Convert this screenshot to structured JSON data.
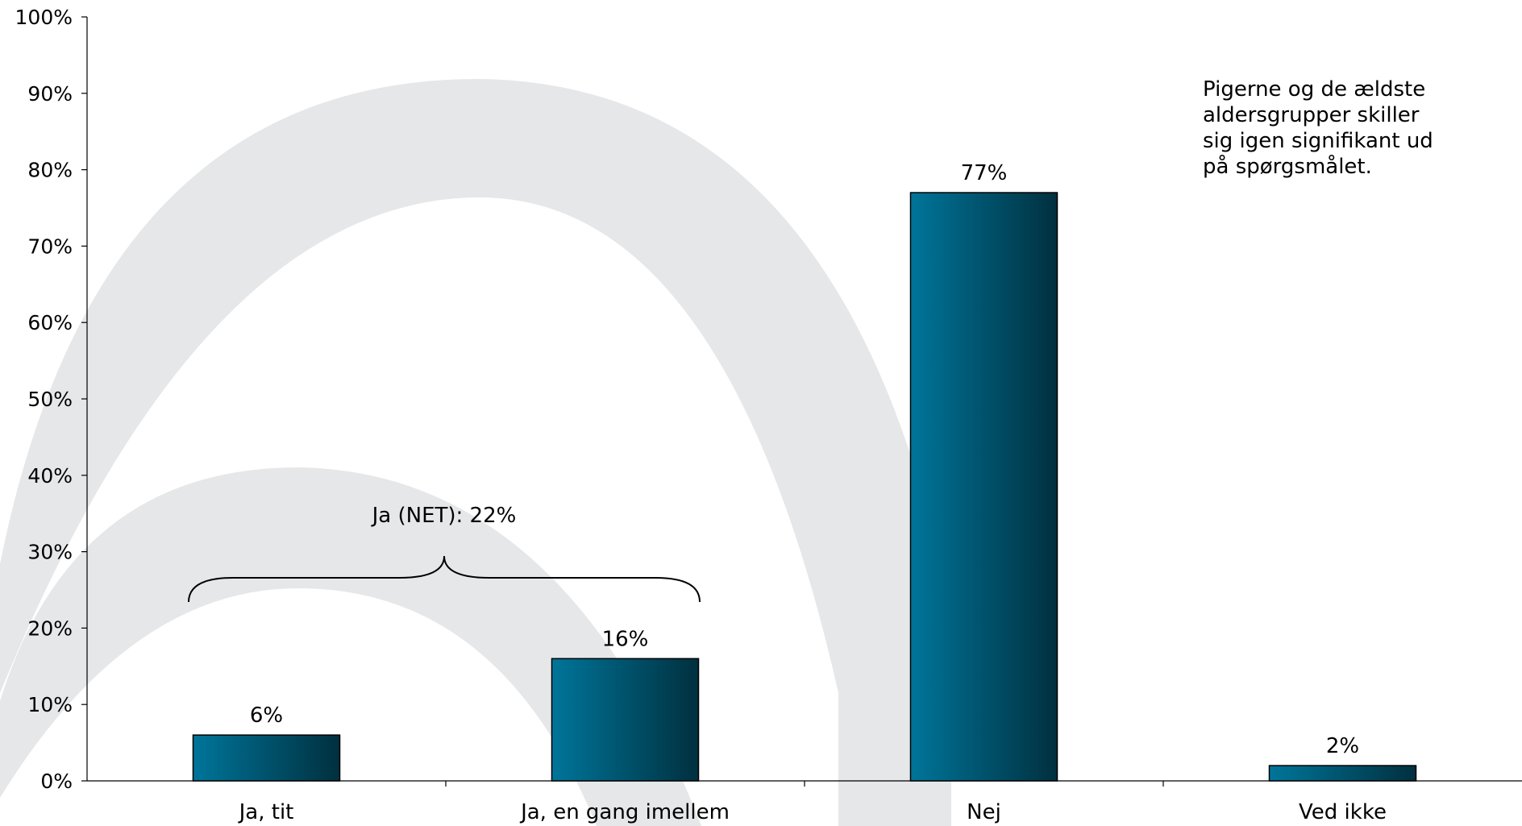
{
  "chart_data": {
    "type": "bar",
    "categories": [
      "Ja, tit",
      "Ja, en gang imellem",
      "Nej",
      "Ved ikke"
    ],
    "values": [
      6,
      16,
      77,
      2
    ],
    "data_labels": [
      "6%",
      "16%",
      "77%",
      "2%"
    ],
    "ylim": [
      0,
      100
    ],
    "yticks": [
      "0%",
      "10%",
      "20%",
      "30%",
      "40%",
      "50%",
      "60%",
      "70%",
      "80%",
      "90%",
      "100%"
    ],
    "grid": false,
    "bar_colors": {
      "light": "#00759a",
      "dark": "#00303f"
    },
    "annotations": {
      "brace_label": "Ja (NET): 22%",
      "note": "Pigerne og de ældste aldersgrupper skiller sig igen signifikant ud på spørgsmålet."
    }
  }
}
